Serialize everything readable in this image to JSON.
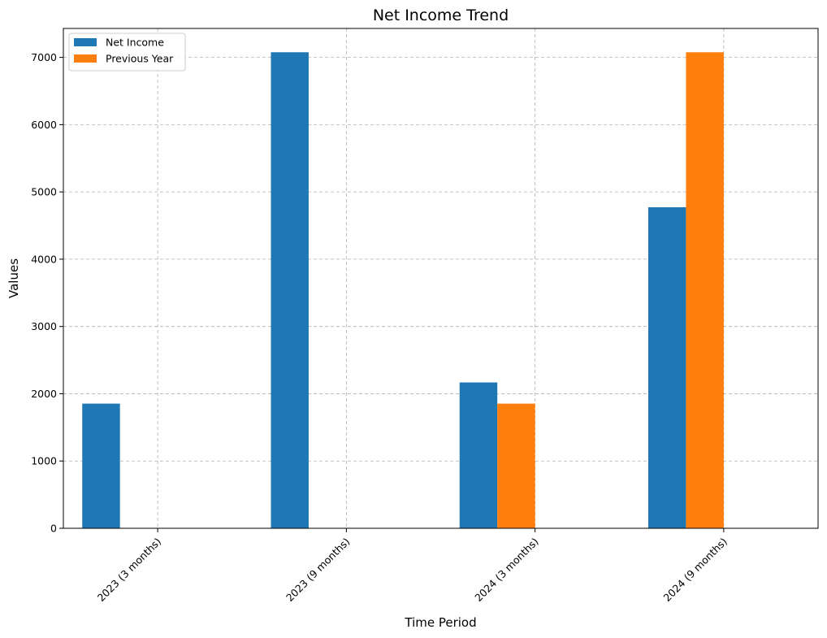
{
  "chart_data": {
    "type": "bar",
    "title": "Net Income Trend",
    "xlabel": "Time Period",
    "ylabel": "Values",
    "categories": [
      "2023 (3 months)",
      "2023 (9 months)",
      "2024 (3 months)",
      "2024 (9 months)"
    ],
    "series": [
      {
        "name": "Net Income",
        "color": "#1f77b4",
        "values": [
          1853,
          7076,
          2168,
          4772
        ]
      },
      {
        "name": "Previous Year",
        "color": "#ff7f0e",
        "values": [
          null,
          null,
          1853,
          7076
        ]
      }
    ],
    "ylim": [
      0,
      7430
    ],
    "yticks": [
      0,
      1000,
      2000,
      3000,
      4000,
      5000,
      6000,
      7000
    ],
    "grid": true,
    "legend_position": "top-left"
  }
}
